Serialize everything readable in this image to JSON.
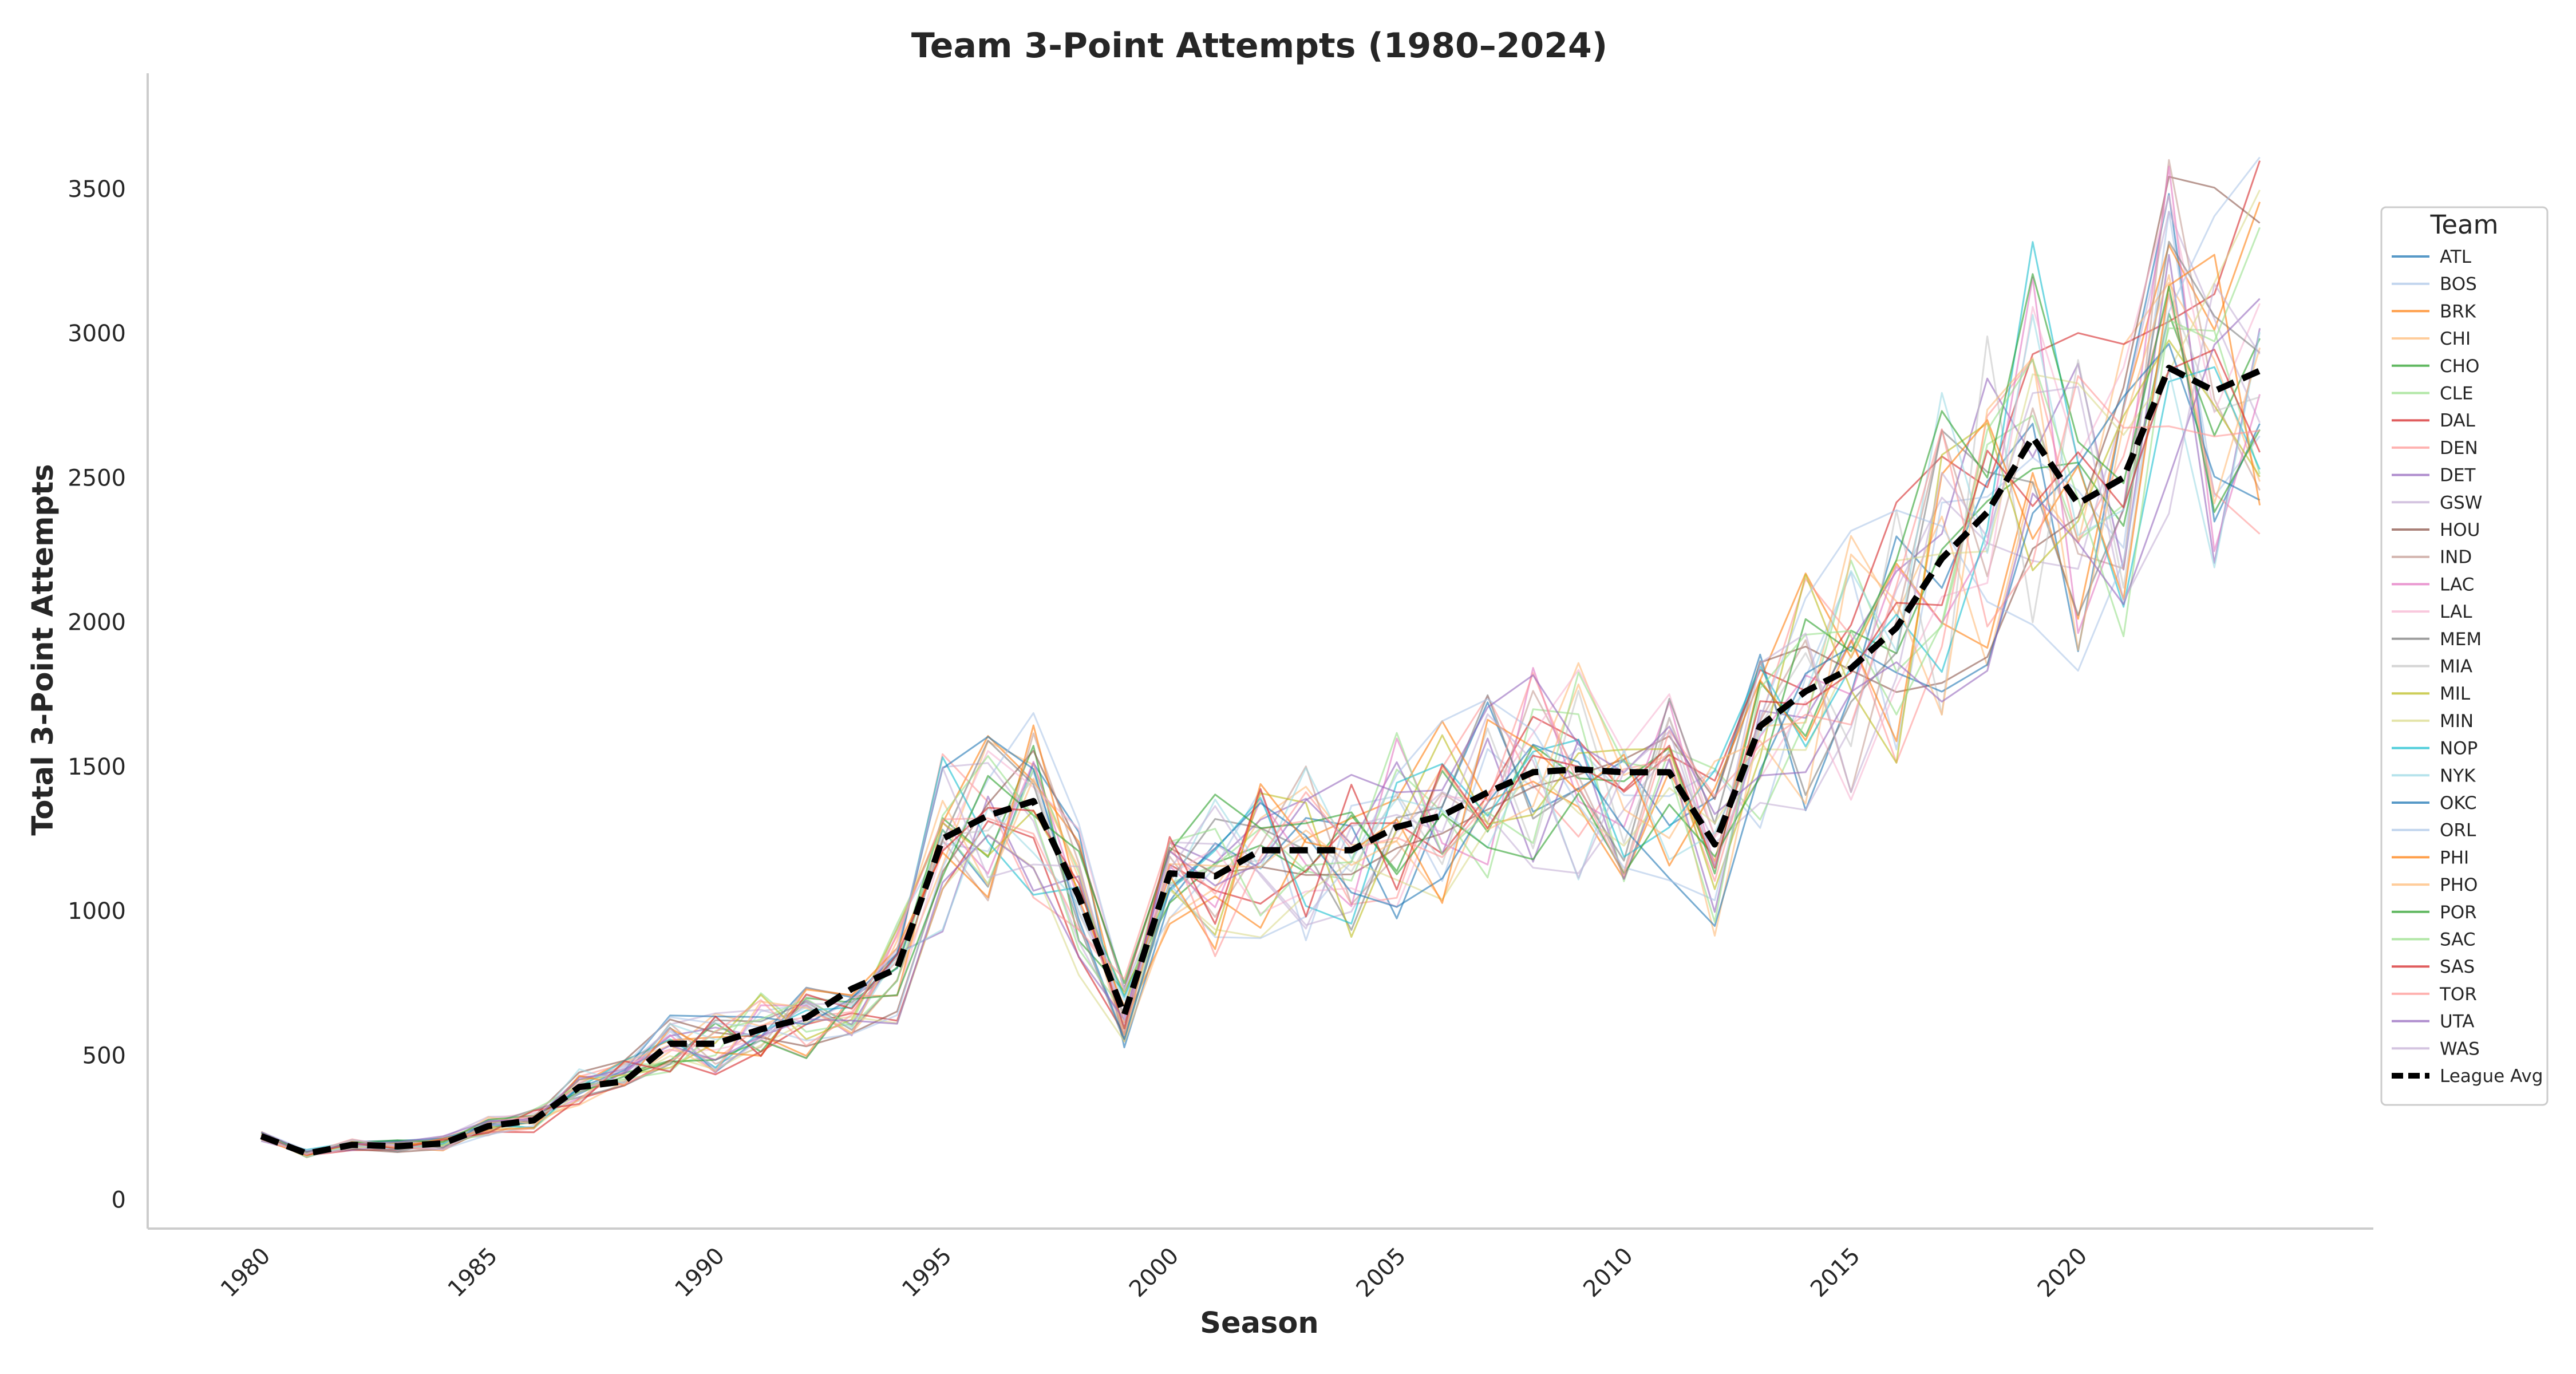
{
  "chart_data": {
    "type": "line",
    "title": "Team 3-Point Attempts (1980–2024)",
    "xlabel": "Season",
    "ylabel": "Total 3-Point Attempts",
    "xlim": [
      1977.5,
      2026.5
    ],
    "ylim": [
      -100,
      3900
    ],
    "x_ticks": [
      1980,
      1985,
      1990,
      1995,
      2000,
      2005,
      2010,
      2015,
      2020
    ],
    "y_ticks": [
      0,
      500,
      1000,
      1500,
      2000,
      2500,
      3000,
      3500
    ],
    "grid": false,
    "legend": {
      "title": "Team",
      "placement": "right"
    },
    "team_series": [
      {
        "name": "ATL",
        "color": "#1f77b4"
      },
      {
        "name": "BOS",
        "color": "#aec7e8"
      },
      {
        "name": "BRK",
        "color": "#ff7f0e"
      },
      {
        "name": "CHI",
        "color": "#ffbb78"
      },
      {
        "name": "CHO",
        "color": "#2ca02c"
      },
      {
        "name": "CLE",
        "color": "#98df8a"
      },
      {
        "name": "DAL",
        "color": "#d62728"
      },
      {
        "name": "DEN",
        "color": "#ff9896"
      },
      {
        "name": "DET",
        "color": "#9467bd"
      },
      {
        "name": "GSW",
        "color": "#c5b0d5"
      },
      {
        "name": "HOU",
        "color": "#8c564b"
      },
      {
        "name": "IND",
        "color": "#c49c94"
      },
      {
        "name": "LAC",
        "color": "#e377c2"
      },
      {
        "name": "LAL",
        "color": "#f7b6d2"
      },
      {
        "name": "MEM",
        "color": "#7f7f7f"
      },
      {
        "name": "MIA",
        "color": "#c7c7c7"
      },
      {
        "name": "MIL",
        "color": "#bcbd22"
      },
      {
        "name": "MIN",
        "color": "#dbdb8d"
      },
      {
        "name": "NOP",
        "color": "#17becf"
      },
      {
        "name": "NYK",
        "color": "#9edae5"
      },
      {
        "name": "OKC",
        "color": "#1f77b4"
      },
      {
        "name": "ORL",
        "color": "#aec7e8"
      },
      {
        "name": "PHI",
        "color": "#ff7f0e"
      },
      {
        "name": "PHO",
        "color": "#ffbb78"
      },
      {
        "name": "POR",
        "color": "#2ca02c"
      },
      {
        "name": "SAC",
        "color": "#98df8a"
      },
      {
        "name": "SAS",
        "color": "#d62728"
      },
      {
        "name": "TOR",
        "color": "#ff9896"
      },
      {
        "name": "UTA",
        "color": "#9467bd"
      },
      {
        "name": "WAS",
        "color": "#c5b0d5"
      }
    ],
    "league_avg": {
      "name": "League Avg",
      "color": "#000000",
      "x": [
        1980,
        1981,
        1982,
        1983,
        1984,
        1985,
        1986,
        1987,
        1988,
        1989,
        1990,
        1991,
        1992,
        1993,
        1994,
        1995,
        1996,
        1997,
        1998,
        1999,
        2000,
        2001,
        2002,
        2003,
        2004,
        2005,
        2006,
        2007,
        2008,
        2009,
        2010,
        2011,
        2012,
        2013,
        2014,
        2015,
        2016,
        2017,
        2018,
        2019,
        2020,
        2021,
        2022,
        2023,
        2024
      ],
      "y": [
        220,
        160,
        190,
        185,
        195,
        255,
        275,
        390,
        410,
        540,
        540,
        590,
        630,
        730,
        800,
        1250,
        1330,
        1380,
        1050,
        640,
        1130,
        1120,
        1210,
        1210,
        1210,
        1290,
        1330,
        1410,
        1480,
        1490,
        1480,
        1480,
        1230,
        1640,
        1760,
        1840,
        1980,
        2220,
        2380,
        2640,
        2410,
        2500,
        2880,
        2800,
        2870
      ]
    }
  }
}
